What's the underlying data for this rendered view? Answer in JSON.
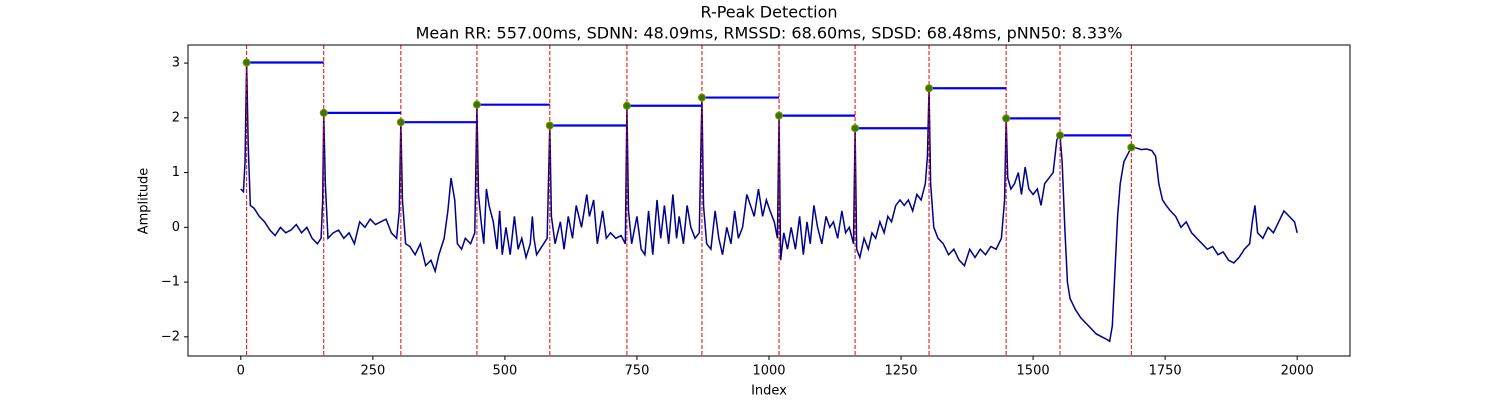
{
  "chart_data": {
    "type": "line",
    "title": "R-Peak Detection",
    "subtitle": "Mean RR: 557.00ms, SDNN: 48.09ms, RMSSD: 68.60ms, SDSD: 68.48ms, pNN50: 8.33%",
    "xlabel": "Index",
    "ylabel": "Amplitude",
    "xlim": [
      -100,
      2100
    ],
    "ylim": [
      -2.35,
      3.33
    ],
    "xticks": [
      0,
      250,
      500,
      750,
      1000,
      1250,
      1500,
      1750,
      2000
    ],
    "yticks": [
      {
        "value": -2,
        "label": "−2"
      },
      {
        "value": -1,
        "label": "−1"
      },
      0,
      1,
      2,
      3
    ],
    "x": [
      0,
      5,
      8,
      11,
      14,
      18,
      25,
      35,
      45,
      55,
      65,
      75,
      85,
      95,
      105,
      115,
      125,
      135,
      145,
      152,
      155,
      157,
      160,
      165,
      175,
      185,
      195,
      205,
      215,
      225,
      235,
      245,
      255,
      265,
      275,
      285,
      295,
      300,
      303,
      306,
      312,
      320,
      330,
      340,
      350,
      360,
      368,
      375,
      385,
      392,
      398,
      405,
      410,
      418,
      425,
      435,
      443,
      447,
      450,
      455,
      460,
      465,
      470,
      478,
      485,
      490,
      495,
      502,
      510,
      518,
      525,
      532,
      540,
      548,
      552,
      555,
      560,
      580,
      585,
      588,
      595,
      605,
      612,
      620,
      628,
      635,
      645,
      655,
      660,
      668,
      675,
      685,
      692,
      700,
      710,
      720,
      728,
      731,
      734,
      740,
      750,
      758,
      765,
      772,
      780,
      788,
      795,
      802,
      810,
      818,
      825,
      830,
      838,
      845,
      852,
      860,
      868,
      873,
      876,
      882,
      890,
      898,
      905,
      912,
      920,
      928,
      935,
      942,
      950,
      958,
      965,
      972,
      980,
      988,
      995,
      1002,
      1010,
      1016,
      1019,
      1022,
      1028,
      1035,
      1042,
      1050,
      1058,
      1065,
      1072,
      1078,
      1085,
      1092,
      1100,
      1108,
      1115,
      1122,
      1130,
      1138,
      1145,
      1152,
      1160,
      1163,
      1166,
      1172,
      1180,
      1188,
      1195,
      1202,
      1210,
      1218,
      1225,
      1232,
      1240,
      1248,
      1256,
      1264,
      1272,
      1280,
      1288,
      1296,
      1300,
      1303,
      1306,
      1312,
      1320,
      1330,
      1340,
      1350,
      1360,
      1370,
      1380,
      1390,
      1400,
      1410,
      1420,
      1430,
      1440,
      1446,
      1449,
      1452,
      1458,
      1465,
      1472,
      1478,
      1485,
      1492,
      1500,
      1508,
      1515,
      1522,
      1530,
      1538,
      1545,
      1551,
      1555,
      1560,
      1565,
      1570,
      1580,
      1590,
      1600,
      1610,
      1620,
      1630,
      1640,
      1645,
      1650,
      1655,
      1660,
      1665,
      1672,
      1680,
      1686,
      1695,
      1705,
      1715,
      1725,
      1732,
      1738,
      1745,
      1752,
      1760,
      1770,
      1780,
      1790,
      1800,
      1810,
      1820,
      1830,
      1840,
      1850,
      1860,
      1870,
      1880,
      1890,
      1900,
      1910,
      1915,
      1920,
      1925,
      1935,
      1945,
      1955,
      1965,
      1975,
      1985,
      1995,
      2000
    ],
    "series": [
      {
        "color": "#00008b",
        "values": [
          0.7,
          0.65,
          1.2,
          3.01,
          1.5,
          0.4,
          0.35,
          0.2,
          0.1,
          -0.05,
          -0.15,
          0.0,
          -0.1,
          -0.05,
          0.05,
          -0.1,
          0.0,
          -0.2,
          -0.3,
          -0.2,
          0.5,
          2.09,
          0.8,
          -0.2,
          -0.1,
          -0.05,
          -0.2,
          -0.1,
          -0.3,
          0.1,
          0.0,
          0.15,
          0.05,
          0.1,
          0.15,
          -0.1,
          -0.2,
          0.3,
          1.92,
          0.5,
          -0.3,
          -0.35,
          -0.5,
          -0.3,
          -0.7,
          -0.6,
          -0.8,
          -0.5,
          -0.2,
          0.3,
          0.9,
          0.5,
          -0.3,
          -0.4,
          -0.2,
          -0.3,
          -0.1,
          2.24,
          0.6,
          0.1,
          -0.3,
          0.7,
          0.4,
          0.1,
          -0.4,
          0.3,
          -0.5,
          0.0,
          -0.5,
          0.2,
          -0.4,
          -0.2,
          -0.55,
          -0.3,
          0.2,
          -0.2,
          -0.5,
          -0.2,
          1.86,
          0.2,
          -0.3,
          0.1,
          -0.4,
          0.2,
          -0.2,
          0.4,
          0.0,
          0.6,
          0.2,
          0.5,
          -0.3,
          0.3,
          -0.2,
          -0.1,
          -0.2,
          -0.15,
          -0.3,
          2.22,
          0.3,
          -0.3,
          0.2,
          -0.4,
          -0.5,
          0.3,
          -0.5,
          0.5,
          -0.2,
          0.4,
          -0.3,
          0.6,
          -0.2,
          0.2,
          -0.3,
          0.4,
          0.0,
          -0.2,
          -0.1,
          2.37,
          0.4,
          -0.3,
          -0.4,
          0.3,
          -0.2,
          -0.5,
          0.0,
          -0.3,
          0.3,
          -0.2,
          0.0,
          0.6,
          0.4,
          0.2,
          0.7,
          0.2,
          0.5,
          0.3,
          0.1,
          -0.2,
          2.04,
          -0.6,
          -0.1,
          -0.4,
          0.0,
          -0.4,
          0.2,
          -0.5,
          0.1,
          -0.3,
          0.4,
          0.0,
          -0.3,
          0.2,
          0.0,
          0.1,
          -0.2,
          0.3,
          -0.1,
          0.0,
          -0.3,
          1.81,
          -0.4,
          -0.55,
          -0.2,
          -0.4,
          -0.1,
          -0.2,
          0.1,
          -0.1,
          0.2,
          0.1,
          0.4,
          0.5,
          0.4,
          0.5,
          0.3,
          0.6,
          0.5,
          0.8,
          1.3,
          2.54,
          0.8,
          0.0,
          -0.2,
          -0.3,
          -0.5,
          -0.4,
          -0.6,
          -0.7,
          -0.4,
          -0.55,
          -0.4,
          -0.5,
          -0.35,
          -0.4,
          -0.2,
          0.5,
          1.99,
          0.9,
          0.7,
          0.8,
          1.0,
          0.6,
          1.1,
          0.7,
          0.6,
          0.7,
          0.4,
          0.8,
          0.9,
          1.0,
          1.6,
          1.68,
          1.2,
          0.0,
          -1.0,
          -1.3,
          -1.5,
          -1.65,
          -1.75,
          -1.85,
          -1.95,
          -2.0,
          -2.05,
          -2.08,
          -1.8,
          -0.8,
          0.2,
          0.8,
          1.2,
          1.35,
          1.46,
          1.45,
          1.42,
          1.43,
          1.4,
          1.3,
          0.8,
          0.5,
          0.4,
          0.3,
          0.2,
          0.0,
          0.1,
          -0.1,
          -0.2,
          -0.3,
          -0.4,
          -0.35,
          -0.5,
          -0.45,
          -0.6,
          -0.65,
          -0.55,
          -0.4,
          -0.3,
          0.1,
          0.4,
          -0.1,
          -0.2,
          0.0,
          -0.1,
          0.1,
          0.3,
          0.2,
          0.1,
          -0.1
        ]
      }
    ],
    "peaks": {
      "x": [
        11,
        157,
        303,
        447,
        585,
        731,
        873,
        1019,
        1163,
        1303,
        1449,
        1551,
        1686
      ],
      "values": [
        3.01,
        2.09,
        1.92,
        2.24,
        1.86,
        2.22,
        2.37,
        2.04,
        1.81,
        2.54,
        1.99,
        1.68,
        1.46
      ],
      "color": "#2e7d00",
      "edge_color": "#8a8a00",
      "interval_color": "#0000ee",
      "line_color": "#ee0000"
    }
  }
}
